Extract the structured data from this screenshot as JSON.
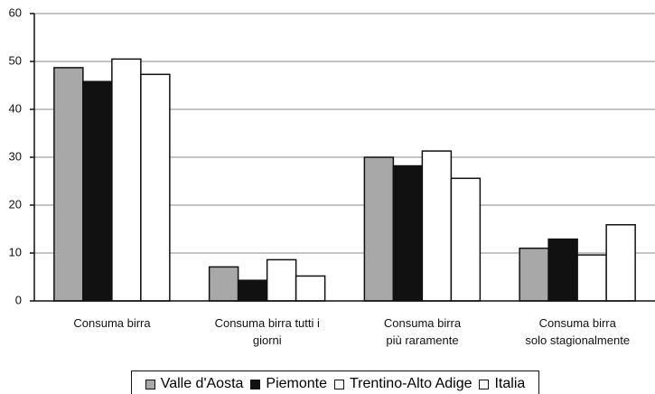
{
  "chart_data": {
    "type": "bar",
    "categories": [
      "Consuma birra",
      "Consuma birra tutti i\ngiorni",
      "Consuma birra\npiù raramente",
      "Consuma birra\nsolo stagionalmente"
    ],
    "series": [
      {
        "name": "Valle d'Aosta",
        "color": "#a8a8a8",
        "values": [
          48.7,
          7.1,
          30.0,
          11.0
        ]
      },
      {
        "name": "Piemonte",
        "color": "#111111",
        "values": [
          45.8,
          4.3,
          28.2,
          12.9
        ]
      },
      {
        "name": "Trentino-Alto Adige",
        "color": "#ffffff",
        "values": [
          50.5,
          8.6,
          31.3,
          9.6
        ]
      },
      {
        "name": "Italia",
        "color": "#ffffff",
        "values": [
          47.3,
          5.2,
          25.6,
          15.9
        ]
      }
    ],
    "ylim": [
      0,
      60
    ],
    "yticks": [
      0,
      10,
      20,
      30,
      40,
      50,
      60
    ],
    "grid": true,
    "legend": "bottom"
  }
}
